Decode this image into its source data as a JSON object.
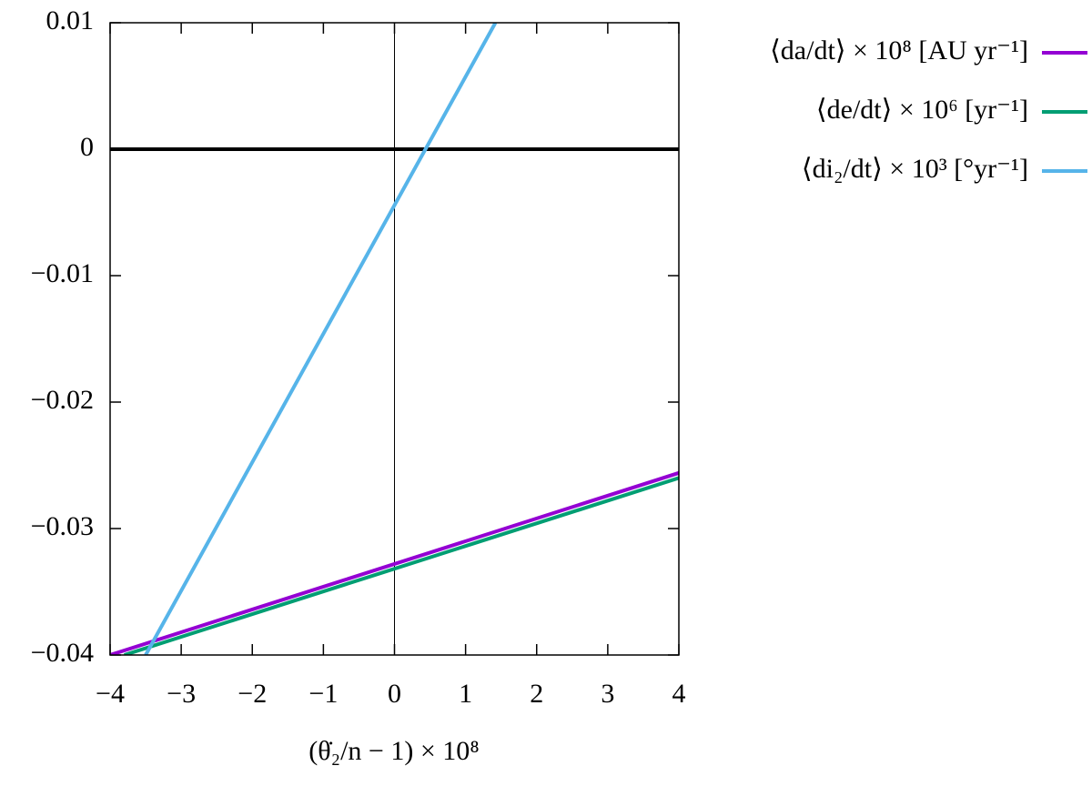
{
  "chart_data": {
    "type": "line",
    "xlabel": "(θ̇₂/n − 1) × 10⁸",
    "xlim": [
      -4,
      4
    ],
    "ylim": [
      -0.04,
      0.01
    ],
    "xticks": [
      {
        "value": -4,
        "label": "−4"
      },
      {
        "value": -3,
        "label": "−3"
      },
      {
        "value": -2,
        "label": "−2"
      },
      {
        "value": -1,
        "label": "−1"
      },
      0,
      1,
      2,
      3,
      4
    ],
    "yticks": [
      {
        "value": -0.04,
        "label": "−0.04"
      },
      {
        "value": -0.03,
        "label": "−0.03"
      },
      {
        "value": -0.02,
        "label": "−0.02"
      },
      {
        "value": -0.01,
        "label": "−0.01"
      },
      0,
      0.01
    ],
    "zero_axes": true,
    "legend": "outside-right",
    "series": [
      {
        "name": "⟨da/dt⟩ × 10⁸ [AU yr⁻¹]",
        "color": "#9400d3",
        "x": [
          -4,
          4
        ],
        "values": [
          -0.04,
          -0.0256
        ]
      },
      {
        "name": "⟨de/dt⟩ × 10⁶ [yr⁻¹]",
        "color": "#009e73",
        "x": [
          -3.8,
          4
        ],
        "values": [
          -0.04,
          -0.026
        ]
      },
      {
        "name": "⟨di₂/dt⟩ × 10³ [°yr⁻¹]",
        "color": "#56b4e9",
        "x": [
          -3.5,
          1.42
        ],
        "values": [
          -0.04,
          0.01
        ]
      }
    ]
  }
}
